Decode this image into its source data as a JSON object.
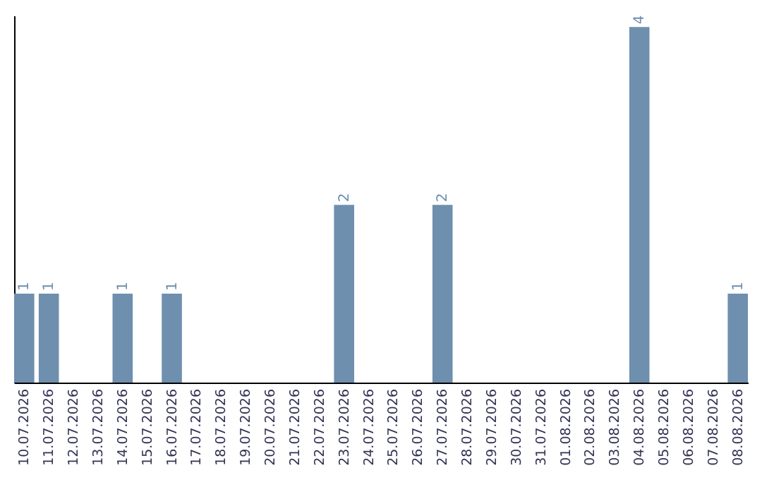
{
  "chart_data": {
    "type": "bar",
    "categories": [
      "10.07.2026",
      "11.07.2026",
      "12.07.2026",
      "13.07.2026",
      "14.07.2026",
      "15.07.2026",
      "16.07.2026",
      "17.07.2026",
      "18.07.2026",
      "19.07.2026",
      "20.07.2026",
      "21.07.2026",
      "22.07.2026",
      "23.07.2026",
      "24.07.2026",
      "25.07.2026",
      "26.07.2026",
      "27.07.2026",
      "28.07.2026",
      "29.07.2026",
      "30.07.2026",
      "31.07.2026",
      "01.08.2026",
      "02.08.2026",
      "03.08.2026",
      "04.08.2026",
      "05.08.2026",
      "06.08.2026",
      "07.08.2026",
      "08.08.2026"
    ],
    "values": [
      1,
      1,
      0,
      0,
      1,
      0,
      1,
      0,
      0,
      0,
      0,
      0,
      0,
      2,
      0,
      0,
      0,
      2,
      0,
      0,
      0,
      0,
      0,
      0,
      0,
      4,
      0,
      0,
      0,
      1
    ],
    "value_labels": [
      "1",
      "1",
      null,
      null,
      "1",
      null,
      "1",
      null,
      null,
      null,
      null,
      null,
      null,
      "2",
      null,
      null,
      null,
      "2",
      null,
      null,
      null,
      null,
      null,
      null,
      null,
      "4",
      null,
      null,
      null,
      "1"
    ],
    "color": "#6e8fae",
    "ylim": [
      0,
      4.13
    ],
    "tick_labels": "x",
    "grid": false
  }
}
